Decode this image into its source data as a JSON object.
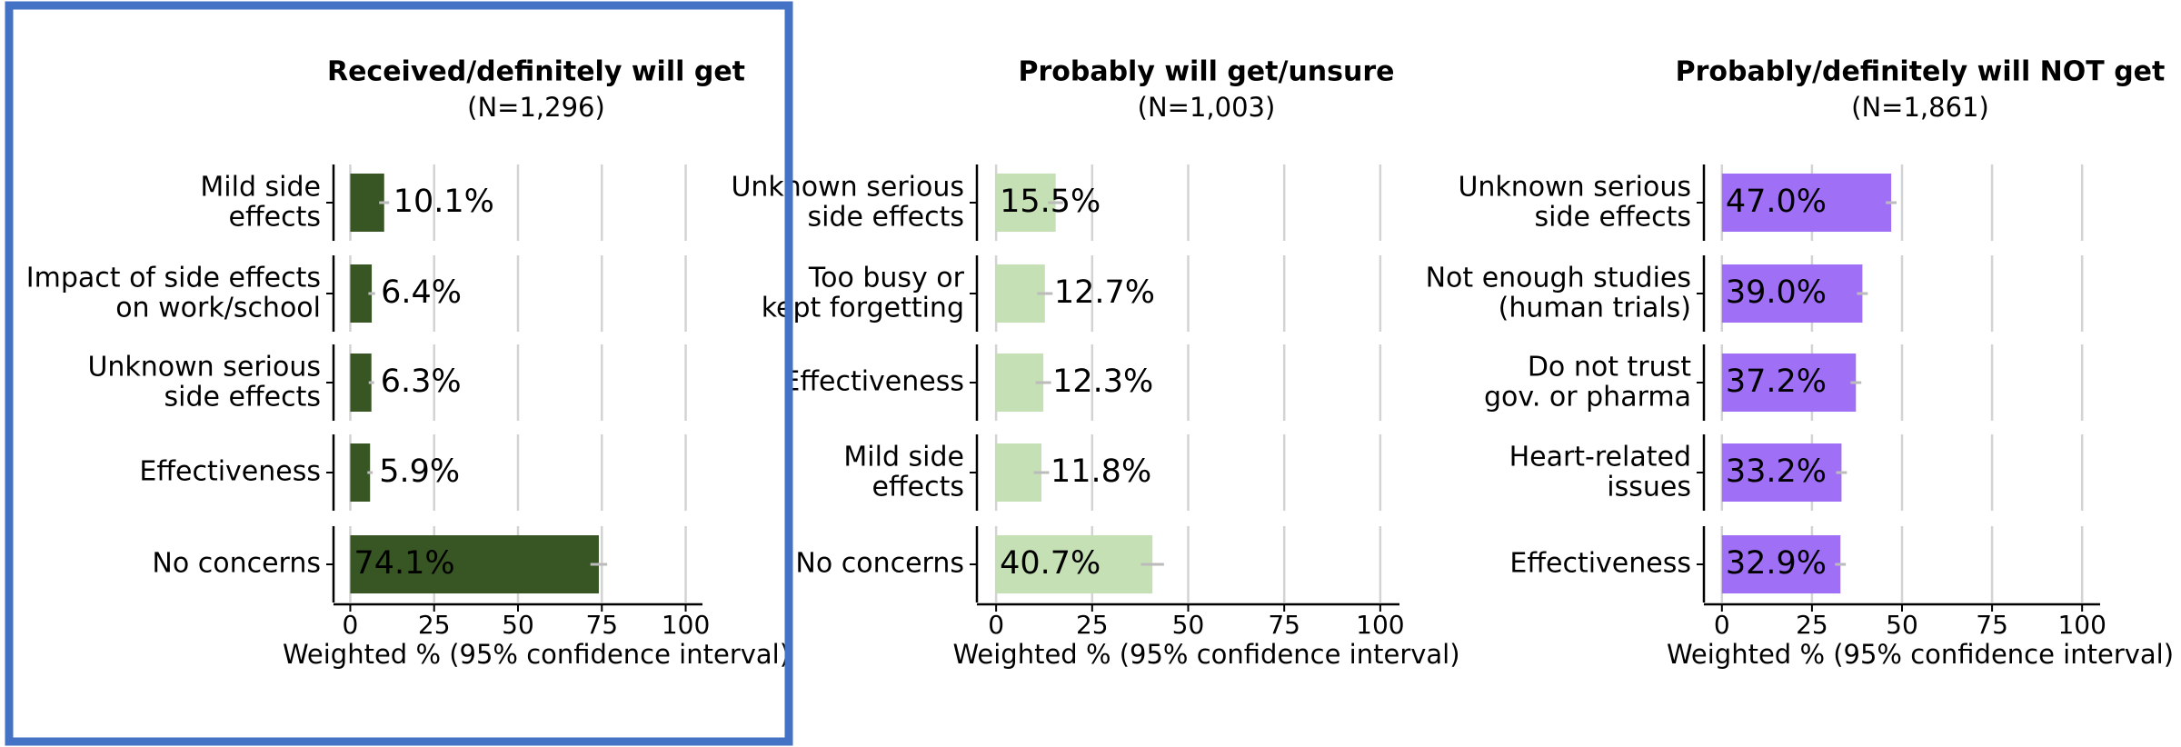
{
  "chart_data": [
    {
      "type": "barh",
      "title": "Received/definitely will get",
      "subtitle": "(N=1,296)",
      "categories": [
        "Mild side\neffects",
        "Impact of side effects\non work/school",
        "Unknown serious\nside effects",
        "Effectiveness",
        "No concerns"
      ],
      "values": [
        10.1,
        6.4,
        6.3,
        5.9,
        74.1
      ],
      "errors": [
        1.5,
        1,
        0.8,
        0.8,
        2.5
      ],
      "value_labels": [
        "10.1%",
        "6.4%",
        "6.3%",
        "5.9%",
        "74.1%"
      ],
      "color": "#375623",
      "inside_label_color": "#ffffff",
      "xlim": [
        -5,
        105
      ],
      "xticks": [
        0,
        25,
        50,
        75,
        100
      ],
      "grid": true,
      "xlabel": "Weighted % (95% confidence interval)"
    },
    {
      "type": "barh",
      "title": "Probably will get/unsure",
      "subtitle": "(N=1,003)",
      "categories": [
        "Unknown serious\nside effects",
        "Too busy or\nkept forgetting",
        "Effectiveness",
        "Mild side\neffects",
        "No concerns"
      ],
      "values": [
        15.5,
        12.7,
        12.3,
        11.8,
        40.7
      ],
      "errors": [
        2,
        2,
        2,
        2,
        3
      ],
      "value_labels": [
        "15.5%",
        "12.7%",
        "12.3%",
        "11.8%",
        "40.7%"
      ],
      "color": "#c5e0b4",
      "inside_label_color": "#000000",
      "xlim": [
        -5,
        105
      ],
      "xticks": [
        0,
        25,
        50,
        75,
        100
      ],
      "grid": true,
      "xlabel": "Weighted % (95% confidence interval)"
    },
    {
      "type": "barh",
      "title": "Probably/definitely will NOT get",
      "subtitle": "(N=1,861)",
      "categories": [
        "Unknown serious\nside effects",
        "Not enough studies\n(human trials)",
        "Do not trust\ngov. or pharma",
        "Heart-related\nissues",
        "Effectiveness"
      ],
      "values": [
        47.0,
        39.0,
        37.2,
        33.2,
        32.9
      ],
      "errors": [
        1.5,
        1.5,
        1.5,
        1.5,
        1.5
      ],
      "value_labels": [
        "47.0%",
        "39.0%",
        "37.2%",
        "33.2%",
        "32.9%"
      ],
      "color": "#9f6ff6",
      "inside_label_color": "#ffffff",
      "xlim": [
        -5,
        105
      ],
      "xticks": [
        0,
        25,
        50,
        75,
        100
      ],
      "grid": true,
      "xlabel": "Weighted % (95% confidence interval)"
    }
  ]
}
